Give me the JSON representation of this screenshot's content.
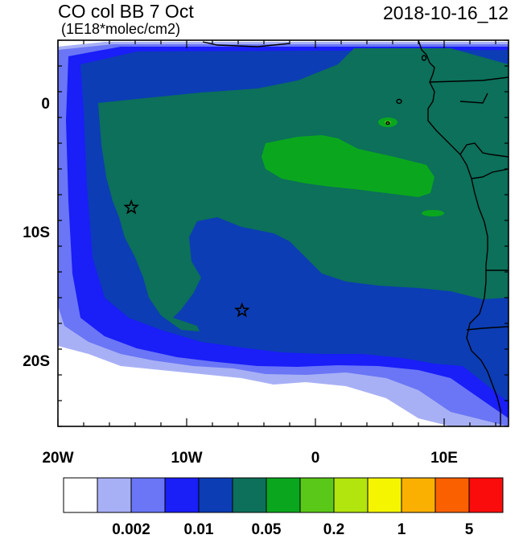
{
  "header": {
    "title": "CO col BB 7 Oct",
    "units": "(1E18*molec/cm2)",
    "datetime": "2018-10-16_12"
  },
  "axes": {
    "y_ticks": [
      {
        "value": 0,
        "label": "0"
      },
      {
        "value": -10,
        "label": "10S"
      },
      {
        "value": -20,
        "label": "20S"
      }
    ],
    "x_ticks": [
      {
        "value": -20,
        "label": "20W"
      },
      {
        "value": -10,
        "label": "10W"
      },
      {
        "value": 0,
        "label": "0"
      },
      {
        "value": 10,
        "label": "10E"
      }
    ],
    "lon_range": [
      -20,
      15
    ],
    "lat_range": [
      -25,
      5
    ]
  },
  "markers": [
    {
      "name": "star-marker",
      "lon": -14.3,
      "lat": -8.0
    },
    {
      "name": "star-marker",
      "lon": -5.7,
      "lat": -16.0
    }
  ],
  "colorbar": {
    "colors": [
      "#ffffff",
      "#a8b0f5",
      "#6a76f5",
      "#1a1ef7",
      "#0c3db4",
      "#0c705a",
      "#0aa71e",
      "#5ac818",
      "#b2e40d",
      "#f5f500",
      "#f9b000",
      "#fa6000",
      "#fb0c0c"
    ],
    "labels": [
      {
        "between_index": 2,
        "text": "0.002"
      },
      {
        "between_index": 4,
        "text": "0.01"
      },
      {
        "between_index": 6,
        "text": "0.05"
      },
      {
        "between_index": 8,
        "text": "0.2"
      },
      {
        "between_index": 10,
        "text": "1"
      },
      {
        "between_index": 12,
        "text": "5"
      }
    ]
  }
}
